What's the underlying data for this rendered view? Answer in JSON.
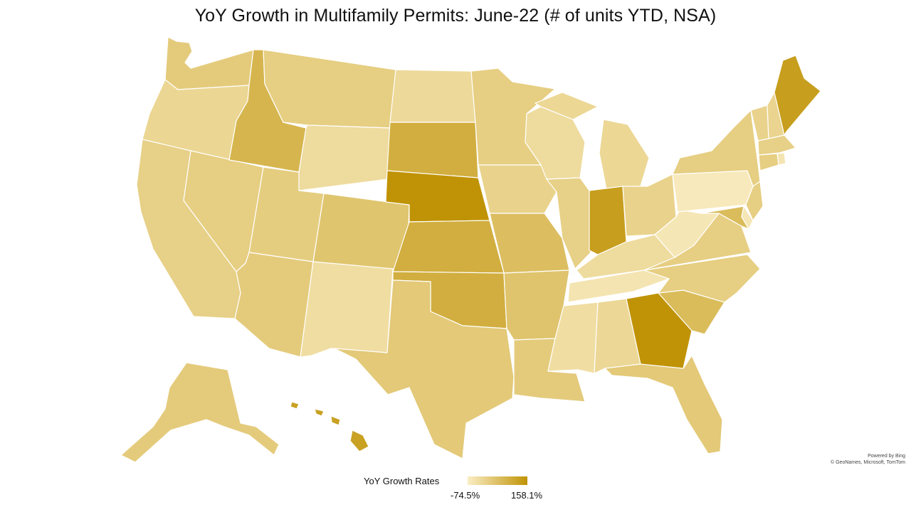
{
  "title": "YoY Growth in Multifamily Permits: June-22 (# of units YTD, NSA)",
  "attribution": {
    "line1": "Powered by Bing",
    "line2": "© GeoNames, Microsoft, TomTom"
  },
  "legend": {
    "title": "YoY Growth Rates",
    "min_label": "-74.5%",
    "max_label": "158.1%",
    "min_color": "#faedc4",
    "max_color": "#c09306"
  },
  "colors": {
    "background": "#ffffff",
    "border": "#ffffff"
  },
  "map_data": {
    "type": "choropleth",
    "region": "United States",
    "shade_scale": "0 = -74.5% (lightest), 1 = 158.1% (darkest)",
    "states": [
      {
        "id": "WA",
        "shade": 0.38
      },
      {
        "id": "OR",
        "shade": 0.26
      },
      {
        "id": "CA",
        "shade": 0.32
      },
      {
        "id": "NV",
        "shade": 0.35
      },
      {
        "id": "ID",
        "shade": 0.62
      },
      {
        "id": "MT",
        "shade": 0.35
      },
      {
        "id": "WY",
        "shade": 0.2
      },
      {
        "id": "UT",
        "shade": 0.36
      },
      {
        "id": "AZ",
        "shade": 0.38
      },
      {
        "id": "CO",
        "shade": 0.45
      },
      {
        "id": "NM",
        "shade": 0.18
      },
      {
        "id": "ND",
        "shade": 0.22
      },
      {
        "id": "SD",
        "shade": 0.7
      },
      {
        "id": "NE",
        "shade": 1.0
      },
      {
        "id": "KS",
        "shade": 0.7
      },
      {
        "id": "OK",
        "shade": 0.7
      },
      {
        "id": "TX",
        "shade": 0.4
      },
      {
        "id": "MN",
        "shade": 0.35
      },
      {
        "id": "IA",
        "shade": 0.3
      },
      {
        "id": "MO",
        "shade": 0.52
      },
      {
        "id": "AR",
        "shade": 0.46
      },
      {
        "id": "LA",
        "shade": 0.38
      },
      {
        "id": "WI",
        "shade": 0.2
      },
      {
        "id": "IL",
        "shade": 0.32
      },
      {
        "id": "MI",
        "shade": 0.25
      },
      {
        "id": "IN",
        "shade": 0.88
      },
      {
        "id": "OH",
        "shade": 0.3
      },
      {
        "id": "KY",
        "shade": 0.2
      },
      {
        "id": "TN",
        "shade": 0.1
      },
      {
        "id": "MS",
        "shade": 0.18
      },
      {
        "id": "AL",
        "shade": 0.24
      },
      {
        "id": "GA",
        "shade": 1.0
      },
      {
        "id": "FL",
        "shade": 0.4
      },
      {
        "id": "SC",
        "shade": 0.55
      },
      {
        "id": "NC",
        "shade": 0.35
      },
      {
        "id": "VA",
        "shade": 0.34
      },
      {
        "id": "WV",
        "shade": 0.08
      },
      {
        "id": "PA",
        "shade": 0.05
      },
      {
        "id": "NY",
        "shade": 0.35
      },
      {
        "id": "VT",
        "shade": 0.3
      },
      {
        "id": "NH",
        "shade": 0.28
      },
      {
        "id": "ME",
        "shade": 0.88
      },
      {
        "id": "MA",
        "shade": 0.32
      },
      {
        "id": "CT",
        "shade": 0.35
      },
      {
        "id": "RI",
        "shade": 0.1
      },
      {
        "id": "NJ",
        "shade": 0.35
      },
      {
        "id": "DE",
        "shade": 0.08
      },
      {
        "id": "MD",
        "shade": 0.55
      },
      {
        "id": "AK",
        "shade": 0.38
      },
      {
        "id": "HI",
        "shade": 0.85
      }
    ]
  }
}
